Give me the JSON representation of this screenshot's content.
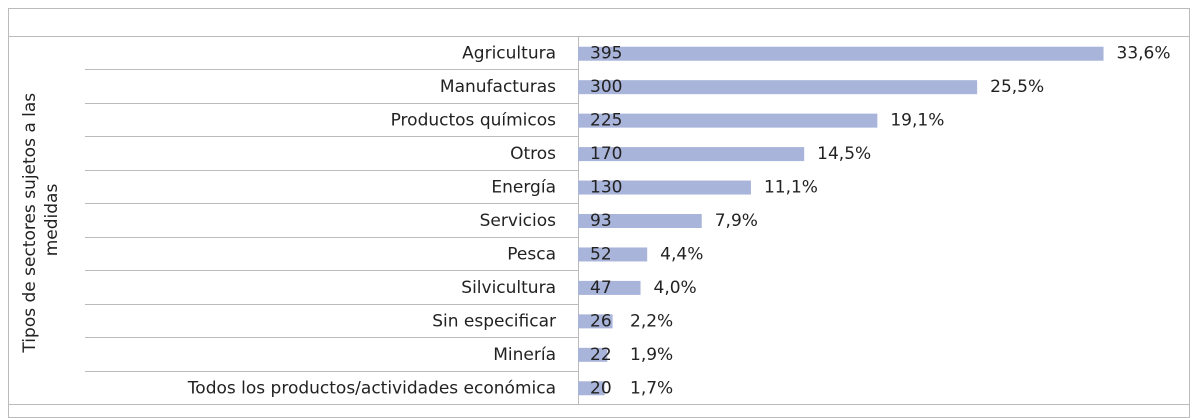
{
  "chart_data": {
    "type": "bar",
    "orientation": "horizontal",
    "ylabel": [
      "Tipos de sectores sujetos a las",
      "medidas"
    ],
    "categories": [
      "Agricultura",
      "Manufacturas",
      "Productos químicos",
      "Otros",
      "Energía",
      "Servicios",
      "Pesca",
      "Silvicultura",
      "Sin especificar",
      "Minería",
      "Todos los productos/actividades económica"
    ],
    "values": [
      395,
      300,
      225,
      170,
      130,
      93,
      52,
      47,
      26,
      22,
      20
    ],
    "percent_labels": [
      "33,6%",
      "25,5%",
      "19,1%",
      "14,5%",
      "11,1%",
      "7,9%",
      "4,4%",
      "4,0%",
      "2,2%",
      "1,9%",
      "1,7%"
    ],
    "color": "#a9b4da",
    "xlim": [
      0,
      460
    ]
  }
}
